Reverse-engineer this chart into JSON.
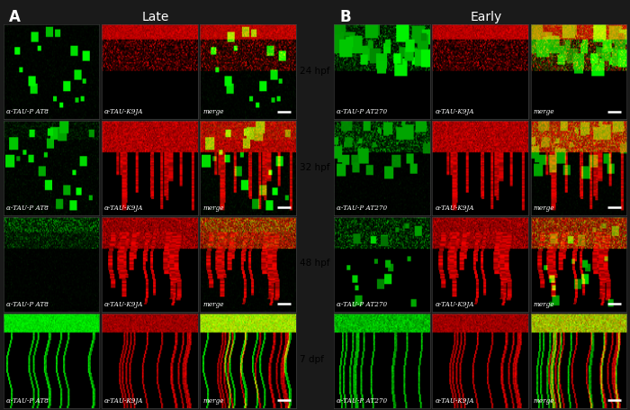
{
  "panel_A_label": "A",
  "panel_B_label": "B",
  "section_A_title": "Late",
  "section_B_title": "Early",
  "time_labels": [
    "24 hpf",
    "32 hpf",
    "48 hpf",
    "7 dpf"
  ],
  "col_labels_A": [
    "α-TAU-P AT8",
    "α-TAU-K9JA",
    "merge"
  ],
  "col_labels_B": [
    "α-TAU-P AT270",
    "α-TAU-K9JA",
    "merge"
  ],
  "fig_bg": "#1a1a1a",
  "panel_bg": "#000000",
  "text_color": "#ffffff",
  "time_label_color": "#000000",
  "scale_bar_color": "#ffffff"
}
